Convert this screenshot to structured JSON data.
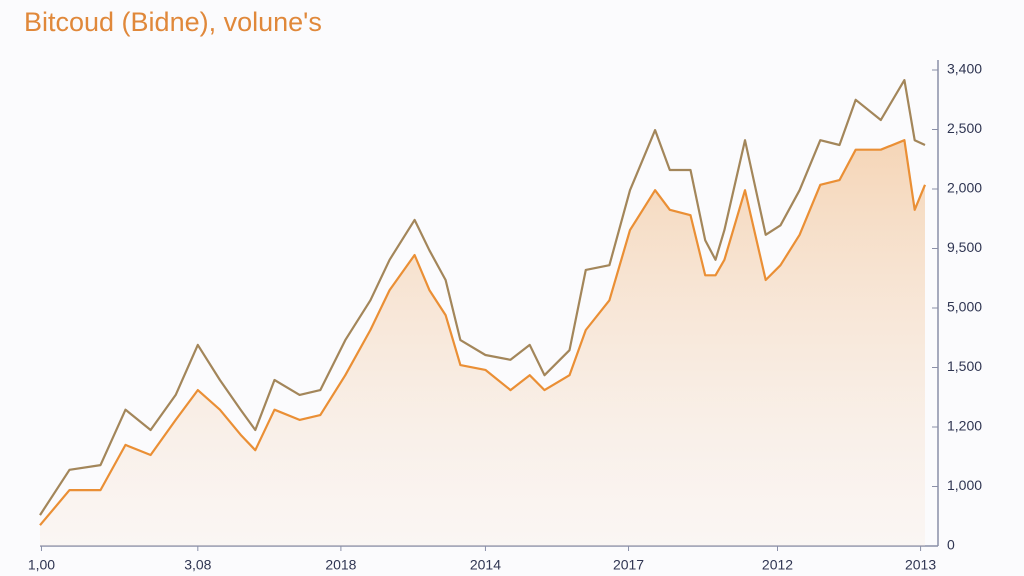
{
  "chart_data": {
    "type": "line",
    "title": "Bitcoud (Bidne), volune's",
    "x": [
      0,
      2.0,
      4.1,
      5.8,
      7.5,
      9.2,
      10.7,
      12.2,
      13.6,
      14.6,
      15.9,
      17.6,
      19.0,
      20.7,
      22.4,
      23.7,
      25.4,
      26.4,
      27.5,
      28.5,
      30.2,
      31.9,
      33.2,
      34.2,
      35.9,
      37.0,
      38.6,
      40.0,
      41.7,
      42.7,
      44.1,
      45.1,
      45.8,
      46.4,
      47.8,
      49.2,
      50.2,
      51.5,
      52.9,
      54.2,
      55.3,
      57.0,
      58.6,
      59.3,
      60.0
    ],
    "series": [
      {
        "color": "#a3865a",
        "values": [
          0.52,
          1.28,
          1.36,
          2.29,
          1.95,
          2.54,
          3.38,
          2.79,
          2.29,
          1.95,
          2.79,
          2.54,
          2.62,
          3.46,
          4.13,
          4.81,
          5.48,
          4.97,
          4.47,
          3.46,
          3.21,
          3.13,
          3.38,
          2.87,
          3.29,
          4.64,
          4.72,
          5.98,
          6.99,
          6.32,
          6.32,
          5.14,
          4.81,
          5.31,
          6.82,
          5.23,
          5.39,
          5.98,
          6.82,
          6.74,
          7.5,
          7.16,
          7.83,
          6.82,
          6.74
        ]
      },
      {
        "color": "#ea8f35",
        "fill": true,
        "values": [
          0.35,
          0.94,
          0.94,
          1.7,
          1.53,
          2.12,
          2.62,
          2.29,
          1.87,
          1.61,
          2.29,
          2.12,
          2.2,
          2.87,
          3.63,
          4.3,
          4.89,
          4.3,
          3.88,
          3.04,
          2.96,
          2.62,
          2.87,
          2.62,
          2.87,
          3.63,
          4.13,
          5.31,
          5.98,
          5.65,
          5.56,
          4.55,
          4.55,
          4.81,
          5.98,
          4.47,
          4.72,
          5.23,
          6.07,
          6.15,
          6.66,
          6.66,
          6.82,
          5.65,
          6.07
        ]
      }
    ],
    "xlim": [
      0,
      60
    ],
    "xticks": [
      {
        "value": 0.1,
        "label": "1,00"
      },
      {
        "value": 10.7,
        "label": "3,08"
      },
      {
        "value": 20.4,
        "label": "2018"
      },
      {
        "value": 30.2,
        "label": "2014"
      },
      {
        "value": 39.9,
        "label": "2017"
      },
      {
        "value": 50,
        "label": "2012"
      },
      {
        "value": 59.7,
        "label": "2013"
      }
    ],
    "ylim": [
      0,
      8
    ],
    "yticks": [
      0,
      {
        "value": 1,
        "label": "1,000"
      },
      {
        "value": 2,
        "label": "1,200"
      },
      {
        "value": 3,
        "label": "1,500"
      },
      {
        "value": 4,
        "label": "5,000"
      },
      {
        "value": 5,
        "label": "9,500"
      },
      {
        "value": 6,
        "label": "2,000"
      },
      {
        "value": 7,
        "label": "2,500"
      },
      {
        "value": 8,
        "label": "3,400"
      }
    ]
  }
}
